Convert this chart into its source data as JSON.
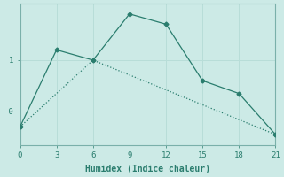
{
  "xlabel": "Humidex (Indice chaleur)",
  "bg_color": "#cceae6",
  "line_color": "#2a7d6e",
  "line1_x": [
    0,
    3,
    6,
    9,
    12,
    15,
    18,
    21
  ],
  "line1_y": [
    -0.3,
    1.2,
    1.0,
    1.9,
    1.7,
    0.6,
    0.35,
    -0.45
  ],
  "line2_x": [
    0,
    6,
    21
  ],
  "line2_y": [
    -0.3,
    1.0,
    -0.45
  ],
  "xlim": [
    0,
    21
  ],
  "ylim": [
    -0.65,
    2.1
  ],
  "xticks": [
    0,
    3,
    6,
    9,
    12,
    15,
    18,
    21
  ],
  "ytick_positions": [
    0.0,
    1.0
  ],
  "ytick_labels": [
    "-0",
    "1"
  ],
  "grid_color": "#b8ddd8",
  "font_color": "#2a7d6e",
  "grid_xpositions": [
    0,
    3,
    6,
    9,
    12,
    15,
    18,
    21
  ],
  "grid_ypositions": [
    -0.0,
    1.0
  ]
}
